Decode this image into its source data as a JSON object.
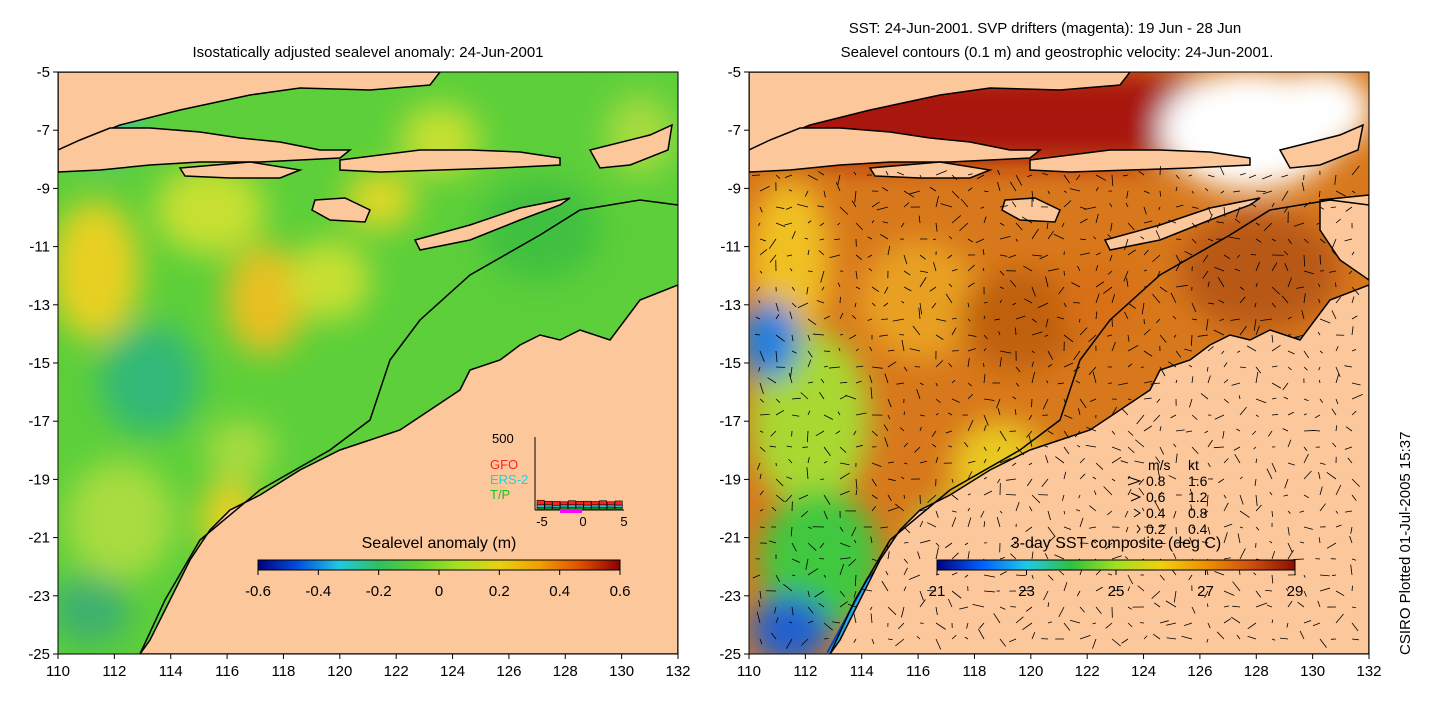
{
  "left_panel": {
    "title": "Isostatically adjusted sealevel anomaly: 24-Jun-2001",
    "colorbar": {
      "title": "Sealevel anomaly (m)",
      "ticks": [
        "-0.6",
        "-0.4",
        "-0.2",
        "0",
        "0.2",
        "0.4",
        "0.6"
      ],
      "range": [
        -0.6,
        0.6
      ],
      "colors": [
        "#00007f",
        "#0050e0",
        "#20c8e0",
        "#30c060",
        "#60d030",
        "#a8e020",
        "#e8d010",
        "#f0a000",
        "#e05000",
        "#8a0000"
      ]
    },
    "inset": {
      "ymax_label": "500",
      "legend": [
        {
          "name": "GFO",
          "color": "#ff2020"
        },
        {
          "name": "ERS-2",
          "color": "#20d0e0"
        },
        {
          "name": "T/P",
          "color": "#20c020"
        }
      ],
      "x_ticks": [
        "-5",
        "0",
        "5"
      ],
      "x_range": [
        -5,
        5
      ],
      "stacks": [
        [
          40,
          55,
          90
        ],
        [
          45,
          50,
          70
        ],
        [
          40,
          45,
          75
        ],
        [
          45,
          50,
          60
        ],
        [
          40,
          55,
          80
        ],
        [
          45,
          50,
          70
        ],
        [
          40,
          50,
          75
        ],
        [
          45,
          50,
          65
        ],
        [
          40,
          55,
          80
        ],
        [
          45,
          50,
          60
        ],
        [
          40,
          50,
          80
        ]
      ]
    }
  },
  "right_panel": {
    "title_line1": "SST: 24-Jun-2001. SVP drifters (magenta): 19 Jun - 28 Jun",
    "title_line2": "Sealevel contours (0.1 m) and geostrophic velocity: 24-Jun-2001.",
    "colorbar": {
      "title": "3-day SST composite (deg C)",
      "ticks": [
        "21",
        "23",
        "25",
        "27",
        "29"
      ],
      "range": [
        21,
        29
      ],
      "colors": [
        "#00007f",
        "#0060ff",
        "#20c8e8",
        "#30c040",
        "#a0e020",
        "#f0d010",
        "#f09000",
        "#d05010",
        "#8a1000"
      ]
    },
    "velocity_legend": {
      "header_ms": "m/s",
      "header_kt": "kt",
      "rows": [
        {
          "ms": "0.8",
          "kt": "1.6"
        },
        {
          "ms": "0.6",
          "kt": "1.2"
        },
        {
          "ms": "0.4",
          "kt": "0.8"
        },
        {
          "ms": "0.2",
          "kt": "0.4"
        }
      ]
    }
  },
  "axes": {
    "x_ticks": [
      "110",
      "112",
      "114",
      "116",
      "118",
      "120",
      "122",
      "124",
      "126",
      "128",
      "130",
      "132"
    ],
    "y_ticks": [
      "-5",
      "-7",
      "-9",
      "-11",
      "-13",
      "-15",
      "-17",
      "-19",
      "-21",
      "-23",
      "-25"
    ],
    "lon_range": [
      110,
      132
    ],
    "lat_range": [
      -5,
      -25
    ]
  },
  "footer": {
    "credit": "CSIRO Plotted 01-Jul-2005 15:37"
  },
  "colors": {
    "land": "#fdc79c",
    "ocean_base": "#5ccf3a",
    "sst_base": "#d8781c"
  }
}
